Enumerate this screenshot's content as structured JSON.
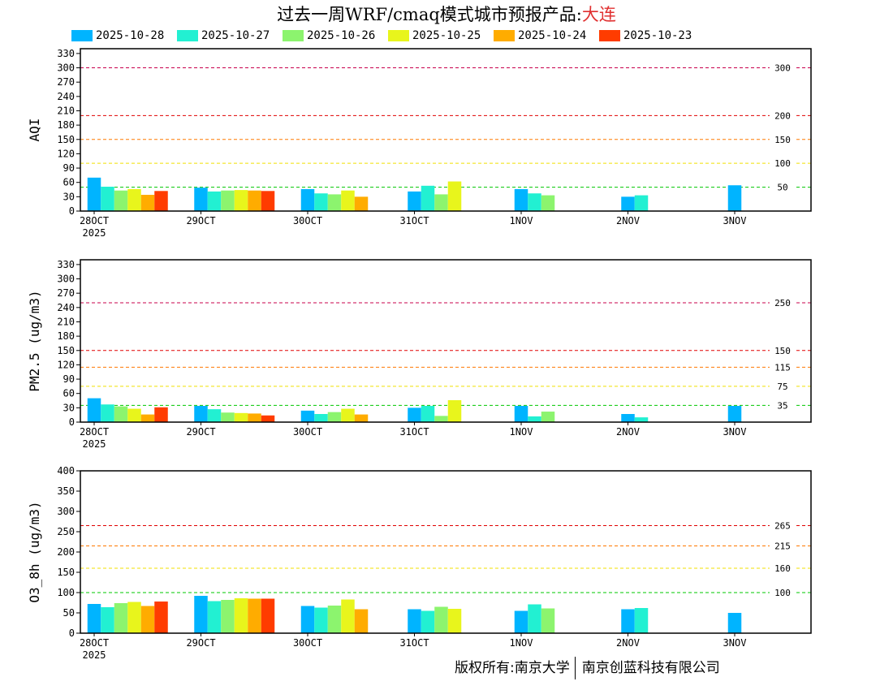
{
  "title": {
    "main": "过去一周WRF/cmaq模式城市预报产品:",
    "city": "大连",
    "city_color": "#e03030"
  },
  "legend": [
    {
      "label": "2025-10-28",
      "color": "#00b4ff"
    },
    {
      "label": "2025-10-27",
      "color": "#22f0d2"
    },
    {
      "label": "2025-10-26",
      "color": "#8cf46e"
    },
    {
      "label": "2025-10-25",
      "color": "#e8f51c"
    },
    {
      "label": "2025-10-24",
      "color": "#ffac00"
    },
    {
      "label": "2025-10-23",
      "color": "#ff3c00"
    }
  ],
  "copyright": {
    "left": "版权所有:南京大学",
    "right": "南京创蓝科技有限公司"
  },
  "chart_data": [
    {
      "type": "bar",
      "ylabel": "AQI",
      "ylim": [
        0,
        340
      ],
      "yticks": [
        0,
        30,
        60,
        90,
        120,
        150,
        180,
        210,
        240,
        270,
        300,
        330
      ],
      "categories": [
        "28OCT",
        "29OCT",
        "30OCT",
        "31OCT",
        "1NOV",
        "2NOV",
        "3NOV"
      ],
      "year_label": "2025",
      "thresholds": [
        {
          "value": 300,
          "label": "300",
          "color": "#c8004b"
        },
        {
          "value": 200,
          "label": "200",
          "color": "#e00000"
        },
        {
          "value": 150,
          "label": "150",
          "color": "#ff7800"
        },
        {
          "value": 100,
          "label": "100",
          "color": "#f0e000"
        },
        {
          "value": 50,
          "label": "50",
          "color": "#00c800"
        }
      ],
      "series": [
        {
          "name": "2025-10-28",
          "values": [
            70,
            49,
            46,
            41,
            46,
            30,
            54
          ]
        },
        {
          "name": "2025-10-27",
          "values": [
            51,
            41,
            37,
            53,
            37,
            33,
            null
          ]
        },
        {
          "name": "2025-10-26",
          "values": [
            43,
            43,
            35,
            35,
            33,
            null,
            null
          ]
        },
        {
          "name": "2025-10-25",
          "values": [
            46,
            44,
            43,
            62,
            null,
            null,
            null
          ]
        },
        {
          "name": "2025-10-24",
          "values": [
            34,
            43,
            30,
            null,
            null,
            null,
            null
          ]
        },
        {
          "name": "2025-10-23",
          "values": [
            42,
            42,
            null,
            null,
            null,
            null,
            null
          ]
        }
      ]
    },
    {
      "type": "bar",
      "ylabel": "PM2.5 (ug/m3)",
      "ylim": [
        0,
        340
      ],
      "yticks": [
        0,
        30,
        60,
        90,
        120,
        150,
        180,
        210,
        240,
        270,
        300,
        330
      ],
      "categories": [
        "28OCT",
        "29OCT",
        "30OCT",
        "31OCT",
        "1NOV",
        "2NOV",
        "3NOV"
      ],
      "year_label": "2025",
      "thresholds": [
        {
          "value": 250,
          "label": "250",
          "color": "#c8004b"
        },
        {
          "value": 150,
          "label": "150",
          "color": "#e00000"
        },
        {
          "value": 115,
          "label": "115",
          "color": "#ff7800"
        },
        {
          "value": 75,
          "label": "75",
          "color": "#f0e000"
        },
        {
          "value": 35,
          "label": "35",
          "color": "#00c800"
        }
      ],
      "series": [
        {
          "name": "2025-10-28",
          "values": [
            50,
            34,
            24,
            30,
            34,
            17,
            34
          ]
        },
        {
          "name": "2025-10-27",
          "values": [
            37,
            27,
            17,
            34,
            12,
            10,
            null
          ]
        },
        {
          "name": "2025-10-26",
          "values": [
            33,
            20,
            21,
            13,
            22,
            null,
            null
          ]
        },
        {
          "name": "2025-10-25",
          "values": [
            28,
            19,
            28,
            46,
            null,
            null,
            null
          ]
        },
        {
          "name": "2025-10-24",
          "values": [
            16,
            18,
            16,
            null,
            null,
            null,
            null
          ]
        },
        {
          "name": "2025-10-23",
          "values": [
            31,
            14,
            null,
            null,
            null,
            null,
            null
          ]
        }
      ]
    },
    {
      "type": "bar",
      "ylabel": "O3_8h (ug/m3)",
      "ylim": [
        0,
        400
      ],
      "yticks": [
        0,
        50,
        100,
        150,
        200,
        250,
        300,
        350,
        400
      ],
      "categories": [
        "28OCT",
        "29OCT",
        "30OCT",
        "31OCT",
        "1NOV",
        "2NOV",
        "3NOV"
      ],
      "year_label": "2025",
      "thresholds": [
        {
          "value": 265,
          "label": "265",
          "color": "#e00000"
        },
        {
          "value": 215,
          "label": "215",
          "color": "#ff7800"
        },
        {
          "value": 160,
          "label": "160",
          "color": "#f0e000"
        },
        {
          "value": 100,
          "label": "100",
          "color": "#00c800"
        }
      ],
      "series": [
        {
          "name": "2025-10-28",
          "values": [
            72,
            92,
            67,
            59,
            55,
            59,
            50
          ]
        },
        {
          "name": "2025-10-27",
          "values": [
            64,
            79,
            63,
            55,
            71,
            62,
            null
          ]
        },
        {
          "name": "2025-10-26",
          "values": [
            74,
            82,
            68,
            65,
            61,
            null,
            null
          ]
        },
        {
          "name": "2025-10-25",
          "values": [
            77,
            86,
            83,
            60,
            null,
            null,
            null
          ]
        },
        {
          "name": "2025-10-24",
          "values": [
            67,
            85,
            59,
            null,
            null,
            null,
            null
          ]
        },
        {
          "name": "2025-10-23",
          "values": [
            78,
            85,
            null,
            null,
            null,
            null,
            null
          ]
        }
      ]
    }
  ]
}
